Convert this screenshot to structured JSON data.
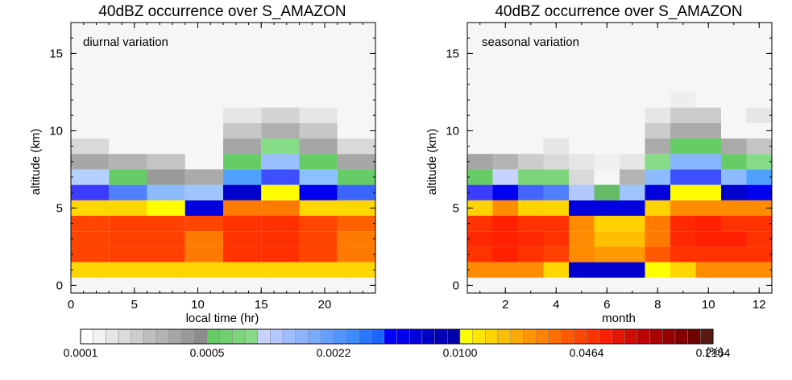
{
  "colorbar": {
    "unit": "(%)",
    "labels": [
      "0.0001",
      "0.0005",
      "0.0022",
      "0.0100",
      "0.0464",
      "0.2154"
    ],
    "colors": [
      "#ffffff",
      "#f2f2f2",
      "#e6e6e6",
      "#dadada",
      "#cccccc",
      "#bfbfbf",
      "#b3b3b3",
      "#a6a6a6",
      "#9a9a9a",
      "#8c8c8c",
      "#66cc66",
      "#70d070",
      "#7bd67b",
      "#86dc86",
      "#c8d2ff",
      "#b4c8ff",
      "#a0beff",
      "#8cb4ff",
      "#78aaff",
      "#64a0ff",
      "#5096ff",
      "#3c8cff",
      "#2878ff",
      "#1a64ff",
      "#0000ff",
      "#0000ee",
      "#0000dd",
      "#0000cc",
      "#0000bb",
      "#0000aa",
      "#ffff00",
      "#ffe600",
      "#ffd200",
      "#ffbe00",
      "#ffaa00",
      "#ff9600",
      "#ff8200",
      "#ff6e00",
      "#ff5a00",
      "#ff4600",
      "#ff3200",
      "#ff1e00",
      "#e61400",
      "#d20a00",
      "#be0000",
      "#aa0000",
      "#960000",
      "#820000",
      "#6e0000",
      "#5a1a10"
    ]
  },
  "chart_data": [
    {
      "type": "heatmap",
      "title": "40dBZ occurrence over S_AMAZON",
      "annotation": "diurnal variation",
      "xlabel": "local time (hr)",
      "ylabel": "altitude (km)",
      "xlim": [
        0,
        24
      ],
      "ylim": [
        -0.5,
        17
      ],
      "xticks": [
        0,
        5,
        10,
        15,
        20
      ],
      "yticks": [
        0,
        5,
        10,
        15
      ],
      "x_edges": [
        0,
        3,
        6,
        9,
        12,
        15,
        18,
        21,
        24
      ],
      "altitude_edges": [
        0.5,
        1.5,
        2.5,
        3.5,
        4.5,
        5.5,
        6.5,
        7.5,
        8.5,
        9.5,
        10.5,
        11.5
      ],
      "cells_by_altitude_bottom_up": [
        [
          "#ffd700",
          "#ffd700",
          "#ffd700",
          "#ffd700",
          "#ffd700",
          "#ffd700",
          "#ffd700",
          "#ffd700"
        ],
        [
          "#ff4500",
          "#ff4000",
          "#ff4000",
          "#ff7a00",
          "#ff3200",
          "#ff3000",
          "#ff4500",
          "#ff7a00"
        ],
        [
          "#ff4500",
          "#ff4000",
          "#ff4000",
          "#ff7a00",
          "#ff3200",
          "#ff3000",
          "#ff4500",
          "#ff7a00"
        ],
        [
          "#ff4500",
          "#ff4000",
          "#ff4000",
          "#ff4500",
          "#ff3200",
          "#ff3000",
          "#ff4500",
          "#ff6000"
        ],
        [
          "#ffd700",
          "#ffd700",
          "#ffff00",
          "#0000dd",
          "#ff7a00",
          "#ff7a00",
          "#ffd700",
          "#ffd700"
        ],
        [
          "#3c3cff",
          "#5080ff",
          "#8cbcff",
          "#a0c4ff",
          "#0000cc",
          "#ffff00",
          "#0000ee",
          "#3c64ff"
        ],
        [
          "#b4d0ff",
          "#66cc66",
          "#999999",
          "#aaaaaa",
          "#50a0ff",
          "#3c50ff",
          "#8cc0ff",
          "#66cc66"
        ],
        [
          "#a6a6a6",
          "#b3b3b3",
          "#c4c4c4",
          null,
          "#66cc66",
          "#9ac0ff",
          "#66cc66",
          "#a6a6a6"
        ],
        [
          "#d9d9d9",
          null,
          null,
          null,
          "#a6a6a6",
          "#86dc86",
          "#a6a6a6",
          "#d9d9d9"
        ],
        [
          null,
          null,
          null,
          null,
          "#c8c8c8",
          "#b0b0b0",
          "#c8c8c8",
          null
        ],
        [
          null,
          null,
          null,
          null,
          "#e6e6e6",
          "#d4d4d4",
          "#e6e6e6",
          null
        ]
      ]
    },
    {
      "type": "heatmap",
      "title": "40dBZ occurrence over S_AMAZON",
      "annotation": "seasonal variation",
      "xlabel": "month",
      "ylabel": "altitude (km)",
      "xlim": [
        0.5,
        12.5
      ],
      "ylim": [
        -0.5,
        17
      ],
      "xticks": [
        2,
        4,
        6,
        8,
        10,
        12
      ],
      "yticks": [
        0,
        5,
        10,
        15
      ],
      "x_edges": [
        0.5,
        1.5,
        2.5,
        3.5,
        4.5,
        5.5,
        6.5,
        7.5,
        8.5,
        9.5,
        10.5,
        11.5,
        12.5
      ],
      "altitude_edges": [
        0.5,
        1.5,
        2.5,
        3.5,
        4.5,
        5.5,
        6.5,
        7.5,
        8.5,
        9.5,
        10.5,
        11.5,
        12.5
      ],
      "cells_by_altitude_bottom_up": [
        [
          "#ff8c00",
          "#ff8c00",
          "#ff8c00",
          "#ffd700",
          "#0000cc",
          "#0000cc",
          "#0000cc",
          "#ffff00",
          "#ffd700",
          "#ff8c00",
          "#ff8c00",
          "#ff8c00"
        ],
        [
          "#ff3200",
          "#ff2000",
          "#ff3200",
          "#ff4000",
          "#ff8c00",
          "#ff9a00",
          "#ff9a00",
          "#ff5a00",
          "#ff3200",
          "#ff3200",
          "#ff3200",
          "#ff3200"
        ],
        [
          "#ff2800",
          "#ff2000",
          "#ff2800",
          "#ff3200",
          "#ff8c00",
          "#ffbe00",
          "#ffbe00",
          "#ff7a00",
          "#ff2800",
          "#ff2000",
          "#ff2000",
          "#ff3200"
        ],
        [
          "#ff3200",
          "#ff2000",
          "#ff3200",
          "#ff3200",
          "#ff8c00",
          "#ffd200",
          "#ffd200",
          "#ff7a00",
          "#ff2800",
          "#ff2000",
          "#ff3200",
          "#ff3200"
        ],
        [
          "#ffd200",
          "#ff8c00",
          "#ffd200",
          "#ffd700",
          "#0000dd",
          "#0000dd",
          "#0000dd",
          "#ffd200",
          "#ff8c00",
          "#ff8c00",
          "#ff8c00",
          "#ff8c00"
        ],
        [
          "#3c3cff",
          "#0000ee",
          "#4464ff",
          "#5080ff",
          "#b4c8ff",
          "#66bb66",
          "#a0c4ff",
          "#0000dd",
          "#ffff00",
          "#ffff00",
          "#0000cc",
          "#0000ee"
        ],
        [
          "#66cc66",
          "#c8d2ff",
          "#7bd67b",
          "#7bd67b",
          "#d9d9d9",
          null,
          "#b3b3b3",
          "#8cbcff",
          "#3c50ff",
          "#3c50ff",
          "#8cbcff",
          "#50a0ff"
        ],
        [
          "#a6a6a6",
          "#b3b3b3",
          "#cccccc",
          "#d9d9d9",
          "#e6e6e6",
          "#f0f0f0",
          "#e6e6e6",
          "#86dc86",
          "#86b4ff",
          "#86b4ff",
          "#66cc66",
          "#86dc86"
        ],
        [
          null,
          null,
          null,
          "#e6e6e6",
          null,
          null,
          null,
          "#aaaaaa",
          "#66cc66",
          "#66cc66",
          "#aaaaaa",
          "#c4c4c4"
        ],
        [
          null,
          null,
          null,
          null,
          null,
          null,
          null,
          "#cccccc",
          "#aaaaaa",
          "#aaaaaa",
          null,
          null
        ],
        [
          null,
          null,
          null,
          null,
          null,
          null,
          null,
          "#e6e6e6",
          "#cccccc",
          "#cccccc",
          null,
          "#e6e6e6"
        ],
        [
          null,
          null,
          null,
          null,
          null,
          null,
          null,
          null,
          "#eeeeee",
          null,
          null,
          null
        ]
      ]
    }
  ]
}
